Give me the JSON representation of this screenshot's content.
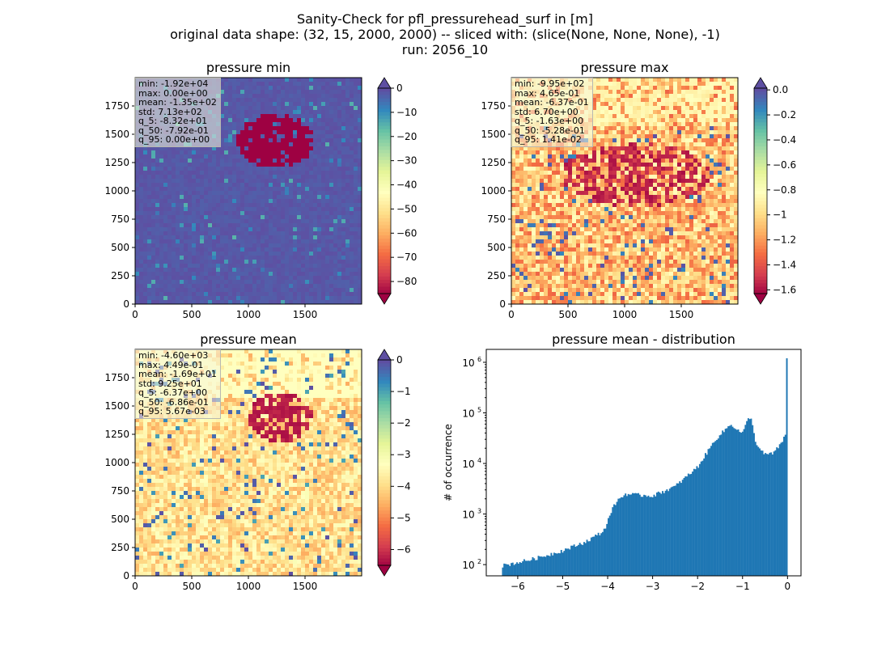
{
  "figure": {
    "title_lines": [
      "Sanity-Check for pfl_pressurehead_surf in [m]",
      "original data shape: (32, 15, 2000, 2000) -- sliced with: (slice(None, None, None), -1)",
      "run: 2056_10"
    ]
  },
  "chart_data": [
    {
      "type": "heatmap",
      "title": "pressure min",
      "xlim": [
        0,
        2000
      ],
      "ylim": [
        0,
        2000
      ],
      "xticks": [
        0,
        500,
        1000,
        1500
      ],
      "yticks": [
        0,
        250,
        500,
        750,
        1000,
        1250,
        1500,
        1750
      ],
      "colormap": "Spectral",
      "colorbar": {
        "vmin": -85,
        "vmax": 0,
        "ticks": [
          0,
          -10,
          -20,
          -30,
          -40,
          -50,
          -60,
          -70,
          -80
        ],
        "extend": "both"
      },
      "stats": [
        "min: -1.92e+04",
        "max: 0.00e+00",
        "mean: -1.35e+02",
        "std: 7.13e+02",
        "q_5: -8.32e+01",
        "q_50: -7.92e-01",
        "q_95: 0.00e+00"
      ]
    },
    {
      "type": "heatmap",
      "title": "pressure max",
      "xlim": [
        0,
        2000
      ],
      "ylim": [
        0,
        2000
      ],
      "xticks": [
        0,
        500,
        1000,
        1500
      ],
      "yticks": [
        0,
        250,
        500,
        750,
        1000,
        1250,
        1500,
        1750
      ],
      "colormap": "Spectral",
      "colorbar": {
        "vmin": -1.63,
        "vmax": 0.014,
        "ticks": [
          0.0,
          -0.2,
          -0.4,
          -0.6,
          -0.8,
          -1.0,
          -1.2,
          -1.4,
          -1.6
        ],
        "extend": "both"
      },
      "stats": [
        "min: -9.95e+02",
        "max: 4.65e-01",
        "mean: -6.37e-01",
        "std: 6.70e+00",
        "q_5: -1.63e+00",
        "q_50: -5.28e-01",
        "q_95: 1.41e-02"
      ]
    },
    {
      "type": "heatmap",
      "title": "pressure mean",
      "xlim": [
        0,
        2000
      ],
      "ylim": [
        0,
        2000
      ],
      "xticks": [
        0,
        500,
        1000,
        1500
      ],
      "yticks": [
        0,
        250,
        500,
        750,
        1000,
        1250,
        1500,
        1750
      ],
      "colormap": "Spectral",
      "colorbar": {
        "vmin": -6.5,
        "vmax": 0,
        "ticks": [
          0,
          -1,
          -2,
          -3,
          -4,
          -5,
          -6
        ],
        "extend": "both"
      },
      "stats": [
        "min: -4.60e+03",
        "max: 4.49e-01",
        "mean: -1.69e+01",
        "std: 9.25e+01",
        "q_5: -6.37e+00",
        "q_50: -6.86e-01",
        "q_95: 5.67e-03"
      ]
    },
    {
      "type": "bar",
      "title": "pressure mean - distribution",
      "ylabel": "# of occurrence",
      "xlim": [
        -6.7,
        0.3
      ],
      "ylim": [
        60,
        1800000
      ],
      "yscale": "log",
      "xticks": [
        -6,
        -5,
        -4,
        -3,
        -2,
        -1,
        0
      ],
      "yticks": [
        100,
        1000,
        10000,
        100000,
        1000000
      ],
      "bar_color": "#1f77b4",
      "histogram": {
        "x": [
          -6.35,
          -6.0,
          -5.5,
          -5.0,
          -4.5,
          -4.1,
          -4.0,
          -3.95,
          -3.8,
          -3.6,
          -3.4,
          -3.0,
          -2.5,
          -2.0,
          -1.6,
          -1.35,
          -1.25,
          -1.1,
          -1.0,
          -0.85,
          -0.8,
          -0.7,
          -0.6,
          -0.5,
          -0.3,
          -0.15,
          -0.05,
          -0.02,
          0.0
        ],
        "counts": [
          95,
          110,
          140,
          190,
          280,
          450,
          700,
          1000,
          1800,
          2500,
          2400,
          2300,
          3500,
          8500,
          30000,
          50000,
          60000,
          45000,
          40000,
          85000,
          70000,
          25000,
          18000,
          15000,
          16000,
          25000,
          35000,
          45000,
          1200000
        ]
      }
    }
  ]
}
